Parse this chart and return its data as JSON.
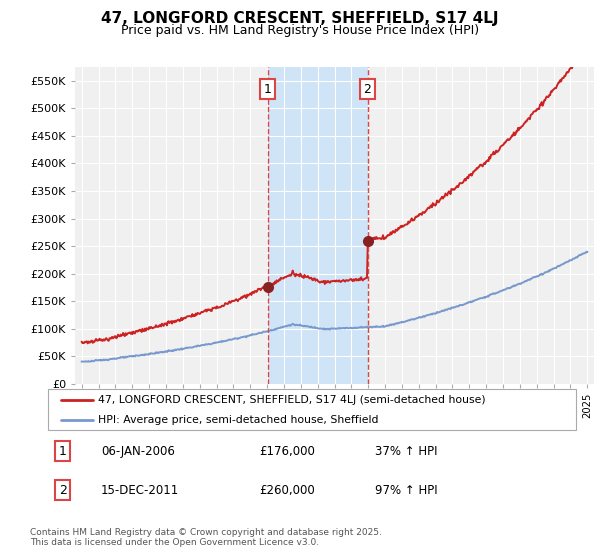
{
  "title": "47, LONGFORD CRESCENT, SHEFFIELD, S17 4LJ",
  "subtitle": "Price paid vs. HM Land Registry's House Price Index (HPI)",
  "ylim": [
    0,
    575000
  ],
  "yticks": [
    0,
    50000,
    100000,
    150000,
    200000,
    250000,
    300000,
    350000,
    400000,
    450000,
    500000,
    550000
  ],
  "ytick_labels": [
    "£0",
    "£50K",
    "£100K",
    "£150K",
    "£200K",
    "£250K",
    "£300K",
    "£350K",
    "£400K",
    "£450K",
    "£500K",
    "£550K"
  ],
  "background_color": "#ffffff",
  "plot_bg_color": "#f0f0f0",
  "grid_color": "#ffffff",
  "sale1_date": 2006.04,
  "sale1_price": 176000,
  "sale1_label": "1",
  "sale2_date": 2011.96,
  "sale2_price": 260000,
  "sale2_label": "2",
  "vspan_color": "#d0e4f7",
  "vline_color": "#dd4444",
  "legend_line1": "47, LONGFORD CRESCENT, SHEFFIELD, S17 4LJ (semi-detached house)",
  "legend_line2": "HPI: Average price, semi-detached house, Sheffield",
  "footer": "Contains HM Land Registry data © Crown copyright and database right 2025.\nThis data is licensed under the Open Government Licence v3.0.",
  "line_color_red": "#cc2222",
  "line_color_blue": "#7799cc",
  "marker_color": "#882222"
}
